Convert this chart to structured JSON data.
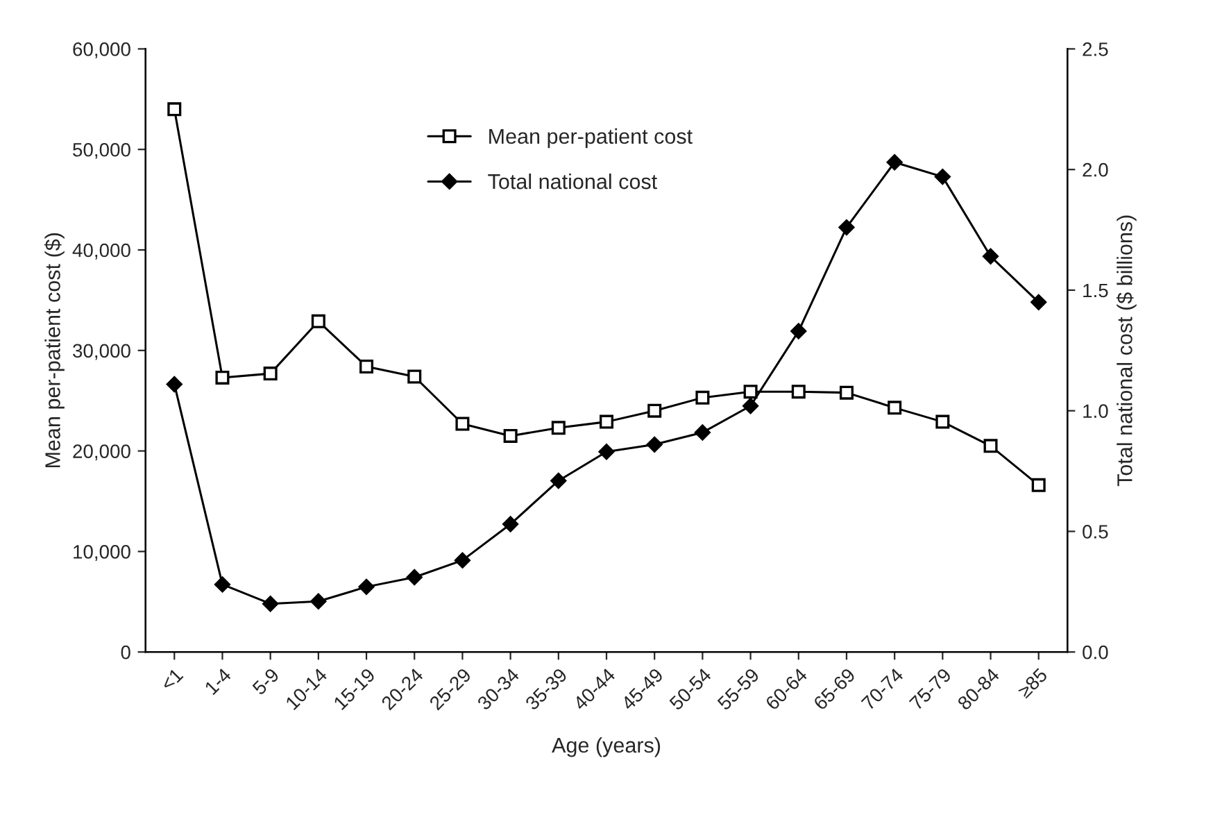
{
  "chart_data": {
    "type": "line",
    "xlabel": "Age (years)",
    "ylabel": "Mean per-patient cost ($)",
    "y2label": "Total national cost ($ billions)",
    "categories": [
      "<1",
      "1-4",
      "5-9",
      "10-14",
      "15-19",
      "20-24",
      "25-29",
      "30-34",
      "35-39",
      "40-44",
      "45-49",
      "50-54",
      "55-59",
      "60-64",
      "65-69",
      "70-74",
      "75-79",
      "80-84",
      "≥85"
    ],
    "series": [
      {
        "name": "Mean per-patient cost",
        "color": "#000000",
        "marker": "square",
        "values": [
          54000,
          27300,
          27700,
          32900,
          28400,
          27400,
          22700,
          21500,
          22300,
          22900,
          24000,
          25300,
          25900,
          25900,
          25800,
          24300,
          22900,
          20500,
          16600
        ]
      },
      {
        "name": "Total national cost",
        "color": "#000000",
        "marker": "diamond",
        "axis": "y2",
        "values": [
          1.11,
          0.28,
          0.2,
          0.21,
          0.27,
          0.31,
          0.38,
          0.53,
          0.71,
          0.83,
          0.86,
          0.91,
          1.02,
          1.33,
          1.76,
          2.03,
          1.97,
          1.64,
          1.45
        ]
      }
    ],
    "ylim": [
      0,
      60000
    ],
    "yticks": [
      0,
      {
        "value": 10000,
        "label": "10,000"
      },
      {
        "value": 20000,
        "label": "20,000"
      },
      {
        "value": 30000,
        "label": "30,000"
      },
      {
        "value": 40000,
        "label": "40,000"
      },
      {
        "value": 50000,
        "label": "50,000"
      },
      {
        "value": 60000,
        "label": "60,000"
      }
    ],
    "y2lim": [
      0,
      2.5
    ],
    "y2ticks": [
      {
        "value": 0,
        "label": "0.0"
      },
      {
        "value": 0.5,
        "label": "0.5"
      },
      {
        "value": 1,
        "label": "1.0"
      },
      {
        "value": 1.5,
        "label": "1.5"
      },
      {
        "value": 2,
        "label": "2.0"
      },
      {
        "value": 2.5,
        "label": "2.5"
      }
    ],
    "legend": "top",
    "grid": false,
    "line_style": "solid"
  }
}
